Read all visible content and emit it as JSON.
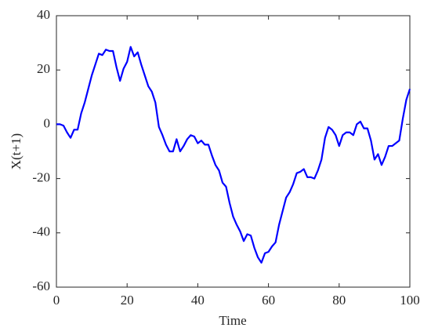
{
  "chart_data": {
    "type": "line",
    "x_label": "Time",
    "y_label": "X(t+1)",
    "x": [
      0,
      1,
      2,
      3,
      4,
      5,
      6,
      7,
      8,
      9,
      10,
      11,
      12,
      13,
      14,
      15,
      16,
      17,
      18,
      19,
      20,
      21,
      22,
      23,
      24,
      25,
      26,
      27,
      28,
      29,
      30,
      31,
      32,
      33,
      34,
      35,
      36,
      37,
      38,
      39,
      40,
      41,
      42,
      43,
      44,
      45,
      46,
      47,
      48,
      49,
      50,
      51,
      52,
      53,
      54,
      55,
      56,
      57,
      58,
      59,
      60,
      61,
      62,
      63,
      64,
      65,
      66,
      67,
      68,
      69,
      70,
      71,
      72,
      73,
      74,
      75,
      76,
      77,
      78,
      79,
      80,
      81,
      82,
      83,
      84,
      85,
      86,
      87,
      88,
      89,
      90,
      91,
      92,
      93,
      94,
      95,
      96,
      97,
      98,
      99,
      100
    ],
    "series": [
      {
        "name": "X(t+1)",
        "color": "#0000ff",
        "values": [
          0,
          0,
          -0.5,
          -3,
          -5,
          -2,
          -2,
          4,
          8,
          13,
          18,
          22,
          26,
          25.5,
          27.5,
          27,
          27,
          21,
          16,
          20.5,
          23,
          28.5,
          25,
          26.5,
          22,
          18,
          14,
          12,
          8,
          -1,
          -4,
          -7.5,
          -10,
          -10,
          -5.5,
          -10,
          -8,
          -5.5,
          -4,
          -4.5,
          -7,
          -6,
          -7.5,
          -7.5,
          -11.5,
          -15,
          -17,
          -21.5,
          -23,
          -29,
          -34,
          -37,
          -39.5,
          -43,
          -40.5,
          -41,
          -45.5,
          -49,
          -51,
          -47.5,
          -47,
          -45,
          -43.5,
          -37,
          -32,
          -27,
          -25,
          -22,
          -18,
          -17.5,
          -16.5,
          -19.5,
          -19.5,
          -20,
          -17,
          -13,
          -5,
          -1,
          -2,
          -4,
          -8,
          -4,
          -3,
          -3,
          -4,
          0,
          1,
          -1.5,
          -1.5,
          -6,
          -13,
          -11,
          -15,
          -12,
          -8,
          -8,
          -7,
          -6,
          2,
          9,
          13
        ]
      }
    ],
    "xlim": [
      0,
      100
    ],
    "xticks": [
      0,
      20,
      40,
      60,
      80,
      100
    ],
    "ylim": [
      -60,
      40
    ],
    "yticks": [
      -60,
      -40,
      -20,
      0,
      20,
      40
    ]
  }
}
